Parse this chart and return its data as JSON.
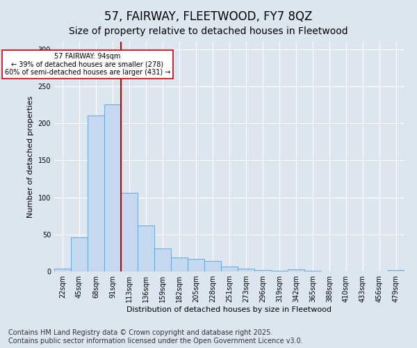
{
  "title1": "57, FAIRWAY, FLEETWOOD, FY7 8QZ",
  "title2": "Size of property relative to detached houses in Fleetwood",
  "xlabel": "Distribution of detached houses by size in Fleetwood",
  "ylabel": "Number of detached properties",
  "bar_labels": [
    "22sqm",
    "45sqm",
    "68sqm",
    "91sqm",
    "113sqm",
    "136sqm",
    "159sqm",
    "182sqm",
    "205sqm",
    "228sqm",
    "251sqm",
    "273sqm",
    "296sqm",
    "319sqm",
    "342sqm",
    "365sqm",
    "388sqm",
    "410sqm",
    "433sqm",
    "456sqm",
    "479sqm"
  ],
  "bar_values": [
    4,
    46,
    210,
    225,
    106,
    62,
    31,
    19,
    17,
    14,
    7,
    4,
    2,
    1,
    3,
    1,
    0,
    0,
    0,
    0,
    2
  ],
  "bar_color": "#c5d8f0",
  "bar_edge_color": "#5a9fd4",
  "vline_x_index": 3,
  "vline_color": "#cc0000",
  "annotation_text": "57 FAIRWAY: 94sqm\n← 39% of detached houses are smaller (278)\n60% of semi-detached houses are larger (431) →",
  "annotation_box_color": "#ffffff",
  "annotation_box_edge": "#cc0000",
  "ylim": [
    0,
    310
  ],
  "yticks": [
    0,
    50,
    100,
    150,
    200,
    250,
    300
  ],
  "background_color": "#dce6f0",
  "footer_text": "Contains HM Land Registry data © Crown copyright and database right 2025.\nContains public sector information licensed under the Open Government Licence v3.0.",
  "title1_fontsize": 12,
  "title2_fontsize": 10,
  "footer_fontsize": 7,
  "axis_label_fontsize": 8,
  "tick_fontsize": 7
}
